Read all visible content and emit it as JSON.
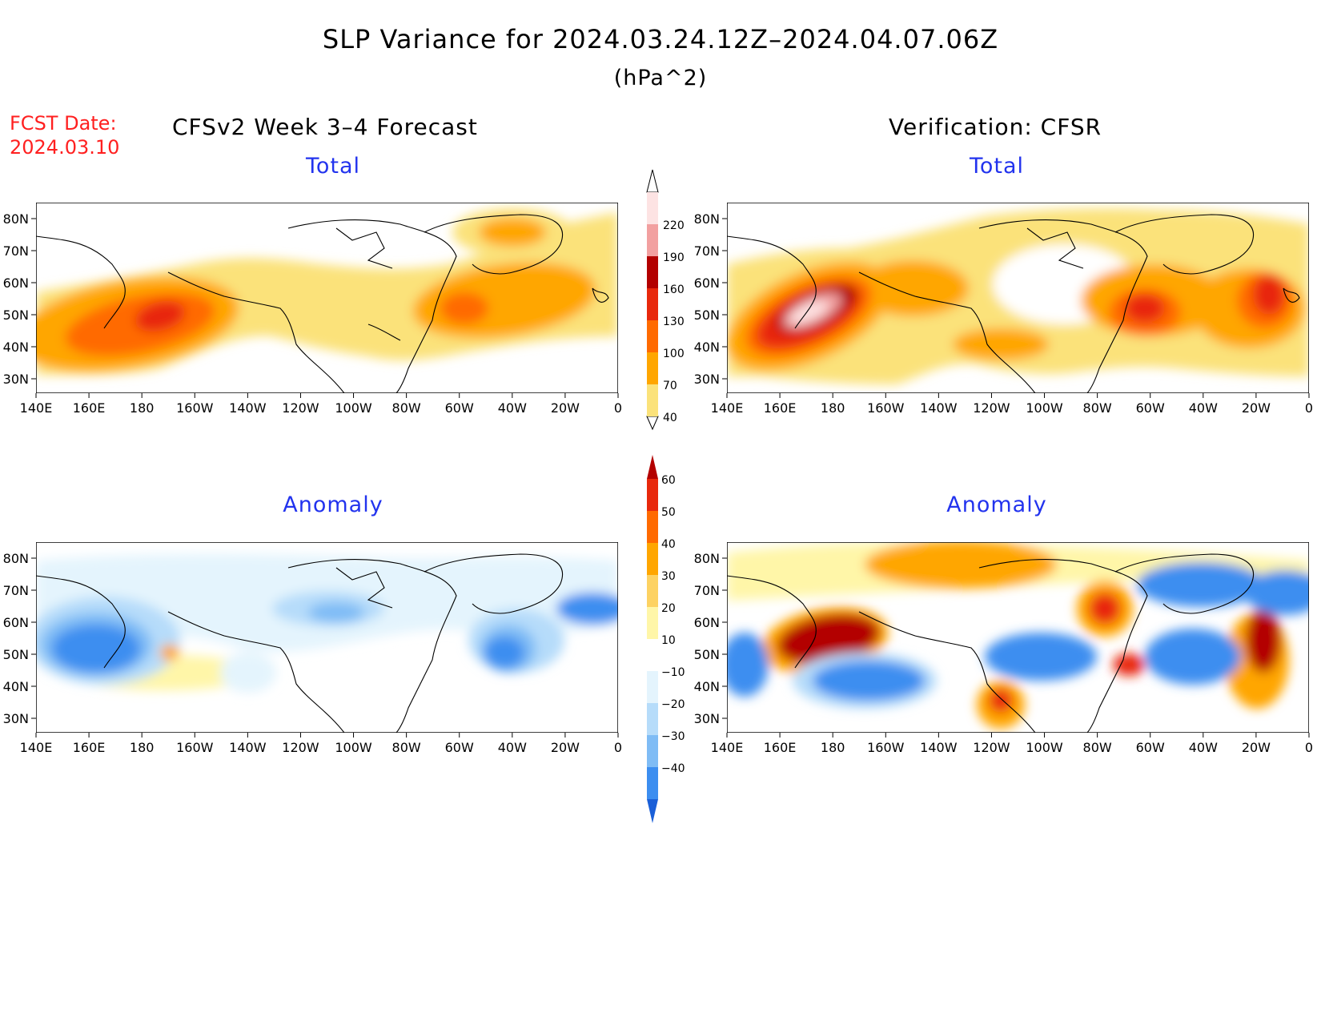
{
  "title": "SLP Variance for 2024.03.24.12Z–2024.04.07.06Z",
  "units": "(hPa^2)",
  "forecast": {
    "label": "FCST Date:",
    "date": "2024.03.10"
  },
  "left_heading": "CFSv2 Week 3–4 Forecast",
  "right_heading": "Verification: CFSR",
  "panels": [
    {
      "id": "forecast-total",
      "title": "Total",
      "field": "total"
    },
    {
      "id": "verification-total",
      "title": "Total",
      "field": "total"
    },
    {
      "id": "forecast-anomaly",
      "title": "Anomaly",
      "field": "anomaly"
    },
    {
      "id": "verification-anomaly",
      "title": "Anomaly",
      "field": "anomaly"
    }
  ],
  "map_axes": {
    "lat_ticks": [
      "80N",
      "70N",
      "60N",
      "50N",
      "40N",
      "30N"
    ],
    "lon_ticks": [
      "140E",
      "160E",
      "180",
      "160W",
      "140W",
      "120W",
      "100W",
      "80W",
      "60W",
      "40W",
      "20W",
      "0"
    ]
  },
  "colorbars": {
    "total": {
      "levels": [
        "40",
        "70",
        "100",
        "130",
        "160",
        "190",
        "220"
      ],
      "colors": [
        "#fbe27a",
        "#ffa600",
        "#ff6a00",
        "#e8280c",
        "#b30000",
        "#f2a0a0",
        "#fde3e3"
      ]
    },
    "anomaly": {
      "levels": [
        "−40",
        "−30",
        "−20",
        "−10",
        "10",
        "20",
        "30",
        "40",
        "50",
        "60"
      ],
      "colors": [
        "#1a5fd8",
        "#3c8ef0",
        "#7fbcf5",
        "#b6dcfa",
        "#e4f4fd",
        "#ffffff",
        "#fff6a8",
        "#fdd262",
        "#ffa600",
        "#ff6a00",
        "#e8280c",
        "#b30000"
      ]
    }
  }
}
